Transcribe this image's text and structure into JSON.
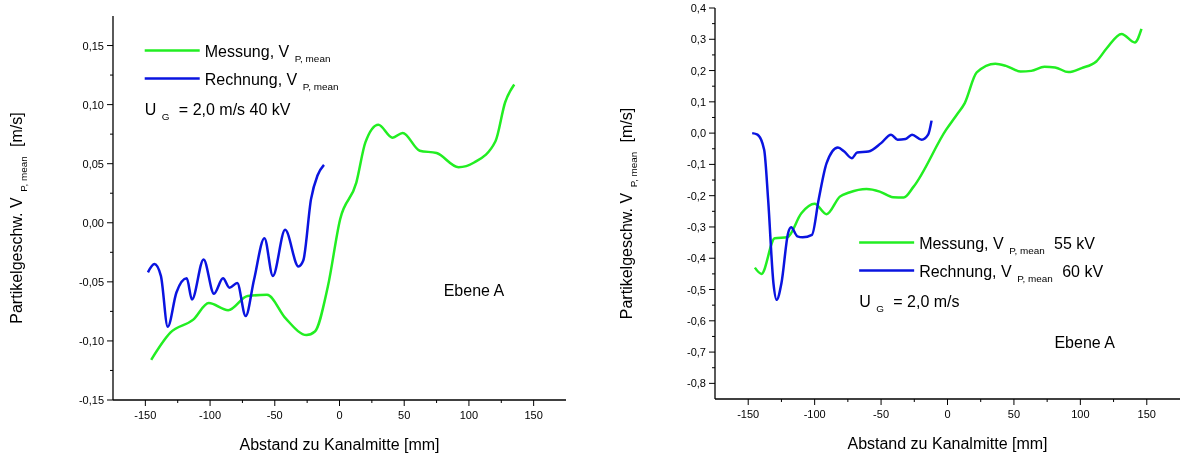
{
  "chart_data": [
    {
      "type": "line",
      "xlabel": "Abstand zu Kanalmitte [mm]",
      "ylabel": "Partikelgeschw. V$_{P, mean}$ [m/s]",
      "xlim": [
        -175,
        175
      ],
      "ylim": [
        -0.15,
        0.175
      ],
      "xticks": [
        -150,
        {
          "value": -125,
          "label": null
        },
        -100,
        {
          "value": -75,
          "label": null
        },
        -50,
        {
          "value": -25,
          "label": null
        },
        0,
        {
          "value": 25,
          "label": null
        },
        50,
        {
          "value": 75,
          "label": null
        },
        100,
        {
          "value": 125,
          "label": null
        },
        150
      ],
      "yticks": [
        {
          "value": -0.15,
          "label": "-0,15"
        },
        {
          "value": -0.125,
          "label": null
        },
        {
          "value": -0.1,
          "label": "-0,10"
        },
        {
          "value": -0.075,
          "label": null
        },
        {
          "value": -0.05,
          "label": "-0,05"
        },
        {
          "value": -0.025,
          "label": null
        },
        {
          "value": 0,
          "label": "0,00"
        },
        {
          "value": 0.025,
          "label": null
        },
        {
          "value": 0.05,
          "label": "0,05"
        },
        {
          "value": 0.075,
          "label": null
        },
        {
          "value": 0.1,
          "label": "0,10"
        },
        {
          "value": 0.125,
          "label": null
        },
        {
          "value": 0.15,
          "label": "0,15"
        }
      ],
      "legend": "top left",
      "grid": false,
      "line_style": "solid",
      "annotations": [
        "U$_{G}$ = 2,0 m/s 40 kV",
        "Ebene A"
      ],
      "series": [
        {
          "name": "Messung, V$_{P, mean}$",
          "color": "#22ee22",
          "x": [
            -145.5,
            -130.7,
            -113,
            -101,
            -86,
            -71,
            -56,
            -41.6,
            -25.5,
            -19,
            -9,
            0.5,
            13,
            20,
            30,
            41,
            48.8,
            62,
            75,
            92,
            104,
            120.5,
            128,
            135
          ],
          "values": [
            -0.116,
            -0.093,
            -0.082,
            -0.068,
            -0.074,
            -0.062,
            -0.061,
            -0.081,
            -0.095,
            -0.092,
            -0.054,
            0.003,
            0.034,
            0.068,
            0.083,
            0.072,
            0.076,
            0.061,
            0.059,
            0.047,
            0.051,
            0.069,
            0.102,
            0.117
          ]
        },
        {
          "name": "Rechnung, V$_{P, mean}$",
          "color": "#0a14e0",
          "x": [
            -148,
            -143,
            -138,
            -132.7,
            -126,
            -118,
            -114,
            -105,
            -97,
            -90,
            -85,
            -79,
            -72.5,
            -66,
            -58,
            -51.5,
            -42,
            -31.7,
            -28,
            -22,
            -17,
            -12
          ],
          "values": [
            -0.042,
            -0.035,
            -0.045,
            -0.088,
            -0.059,
            -0.047,
            -0.065,
            -0.031,
            -0.06,
            -0.047,
            -0.055,
            -0.051,
            -0.079,
            -0.048,
            -0.013,
            -0.045,
            -0.006,
            -0.037,
            -0.032,
            0.02,
            0.04,
            0.049
          ]
        }
      ]
    },
    {
      "type": "line",
      "xlabel": "Abstand zu Kanalmitte [mm]",
      "ylabel": "Partikelgeschw. V$_{P, mean}$ [m/s]",
      "xlim": [
        -175,
        175
      ],
      "ylim": [
        -0.85,
        0.4
      ],
      "xticks": [
        -150,
        {
          "value": -125,
          "label": null
        },
        -100,
        {
          "value": -75,
          "label": null
        },
        -50,
        {
          "value": -25,
          "label": null
        },
        0,
        {
          "value": 25,
          "label": null
        },
        50,
        {
          "value": 75,
          "label": null
        },
        100,
        {
          "value": 125,
          "label": null
        },
        150
      ],
      "yticks": [
        {
          "value": -0.8,
          "label": "-0,8"
        },
        {
          "value": -0.75,
          "label": null
        },
        {
          "value": -0.7,
          "label": "-0,7"
        },
        {
          "value": -0.65,
          "label": null
        },
        {
          "value": -0.6,
          "label": "-0,6"
        },
        {
          "value": -0.55,
          "label": null
        },
        {
          "value": -0.5,
          "label": "-0,5"
        },
        {
          "value": -0.45,
          "label": null
        },
        {
          "value": -0.4,
          "label": "-0,4"
        },
        {
          "value": -0.35,
          "label": null
        },
        {
          "value": -0.3,
          "label": "-0,3"
        },
        {
          "value": -0.25,
          "label": null
        },
        {
          "value": -0.2,
          "label": "-0,2"
        },
        {
          "value": -0.15,
          "label": null
        },
        {
          "value": -0.1,
          "label": "-0,1"
        },
        {
          "value": -0.05,
          "label": null
        },
        {
          "value": 0,
          "label": "0,0"
        },
        {
          "value": 0.05,
          "label": null
        },
        {
          "value": 0.1,
          "label": "0,1"
        },
        {
          "value": 0.15,
          "label": null
        },
        {
          "value": 0.2,
          "label": "0,2"
        },
        {
          "value": 0.25,
          "label": null
        },
        {
          "value": 0.3,
          "label": "0,3"
        },
        {
          "value": 0.35,
          "label": null
        },
        {
          "value": 0.4,
          "label": "0,4"
        }
      ],
      "legend": "bottom",
      "grid": false,
      "line_style": "solid",
      "annotations": [
        "U$_{G}$ = 2,0 m/s",
        "Ebene A"
      ],
      "series": [
        {
          "name": "Messung, V$_{P, mean}$ 55 kV",
          "color": "#22ee22",
          "x": [
            -145,
            -140,
            -130,
            -120.6,
            -110,
            -100,
            -91,
            -81,
            -74,
            -61,
            -51,
            -41,
            -33,
            -25.5,
            -1,
            7,
            13,
            22,
            36,
            44,
            55,
            63,
            73,
            81,
            91,
            101,
            112,
            120,
            131,
            141,
            146
          ],
          "values": [
            -0.43,
            -0.45,
            -0.336,
            -0.333,
            -0.256,
            -0.226,
            -0.259,
            -0.203,
            -0.19,
            -0.179,
            -0.187,
            -0.205,
            -0.206,
            -0.171,
            0.011,
            0.059,
            0.096,
            0.194,
            0.222,
            0.215,
            0.197,
            0.199,
            0.212,
            0.21,
            0.195,
            0.208,
            0.229,
            0.272,
            0.317,
            0.29,
            0.333
          ]
        },
        {
          "name": "Rechnung, V$_{P, mean}$ 60 kV",
          "color": "#0a14e0",
          "x": [
            -147,
            -143,
            -138,
            -135,
            -131,
            -128.6,
            -125,
            -120,
            -117.7,
            -113,
            -109,
            -102,
            -97,
            -91,
            -82.5,
            -77.7,
            -72,
            -68,
            -59.5,
            -50,
            -42.5,
            -37.6,
            -31.6,
            -26.7,
            -19.4,
            -14.6,
            -12
          ],
          "values": [
            0,
            -0.005,
            -0.053,
            -0.213,
            -0.48,
            -0.533,
            -0.48,
            -0.32,
            -0.301,
            -0.33,
            -0.333,
            -0.325,
            -0.213,
            -0.096,
            -0.046,
            -0.059,
            -0.08,
            -0.062,
            -0.059,
            -0.032,
            -0.005,
            -0.021,
            -0.019,
            -0.005,
            -0.021,
            -0.005,
            0.04
          ]
        }
      ]
    }
  ]
}
